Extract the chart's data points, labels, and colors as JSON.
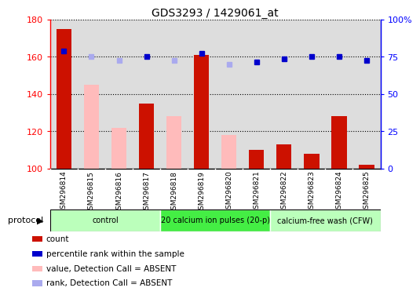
{
  "title": "GDS3293 / 1429061_at",
  "samples": [
    "GSM296814",
    "GSM296815",
    "GSM296816",
    "GSM296817",
    "GSM296818",
    "GSM296819",
    "GSM296820",
    "GSM296821",
    "GSM296822",
    "GSM296823",
    "GSM296824",
    "GSM296825"
  ],
  "bar_values": [
    175,
    null,
    null,
    135,
    null,
    161,
    null,
    110,
    113,
    108,
    128,
    102
  ],
  "bar_absent_values": [
    null,
    145,
    122,
    null,
    128,
    null,
    118,
    null,
    null,
    null,
    null,
    null
  ],
  "percentile_values": [
    163,
    null,
    null,
    160,
    null,
    162,
    null,
    157,
    159,
    160,
    160,
    158
  ],
  "percentile_absent_values": [
    null,
    160,
    158,
    null,
    158,
    null,
    156,
    null,
    null,
    null,
    null,
    null
  ],
  "ylim_left": [
    100,
    180
  ],
  "ylim_right": [
    0,
    100
  ],
  "yticks_left": [
    100,
    120,
    140,
    160,
    180
  ],
  "yticks_right": [
    0,
    25,
    50,
    75,
    100
  ],
  "ytick_labels_right": [
    "0",
    "25",
    "50",
    "75",
    "100%"
  ],
  "protocol_groups": [
    {
      "label": "control",
      "start": 0,
      "end": 4,
      "color": "#bbffbb"
    },
    {
      "label": "20 calcium ion pulses (20-p)",
      "start": 4,
      "end": 8,
      "color": "#44ee44"
    },
    {
      "label": "calcium-free wash (CFW)",
      "start": 8,
      "end": 12,
      "color": "#bbffbb"
    }
  ],
  "bar_color": "#cc1100",
  "bar_absent_color": "#ffbbbb",
  "percentile_color": "#0000cc",
  "percentile_absent_color": "#aaaaee",
  "plot_bg_color": "#dddddd",
  "xtick_bg_color": "#cccccc",
  "white_bg": "#ffffff",
  "legend_items": [
    {
      "color": "#cc1100",
      "label": "count"
    },
    {
      "color": "#0000cc",
      "label": "percentile rank within the sample"
    },
    {
      "color": "#ffbbbb",
      "label": "value, Detection Call = ABSENT"
    },
    {
      "color": "#aaaaee",
      "label": "rank, Detection Call = ABSENT"
    }
  ]
}
